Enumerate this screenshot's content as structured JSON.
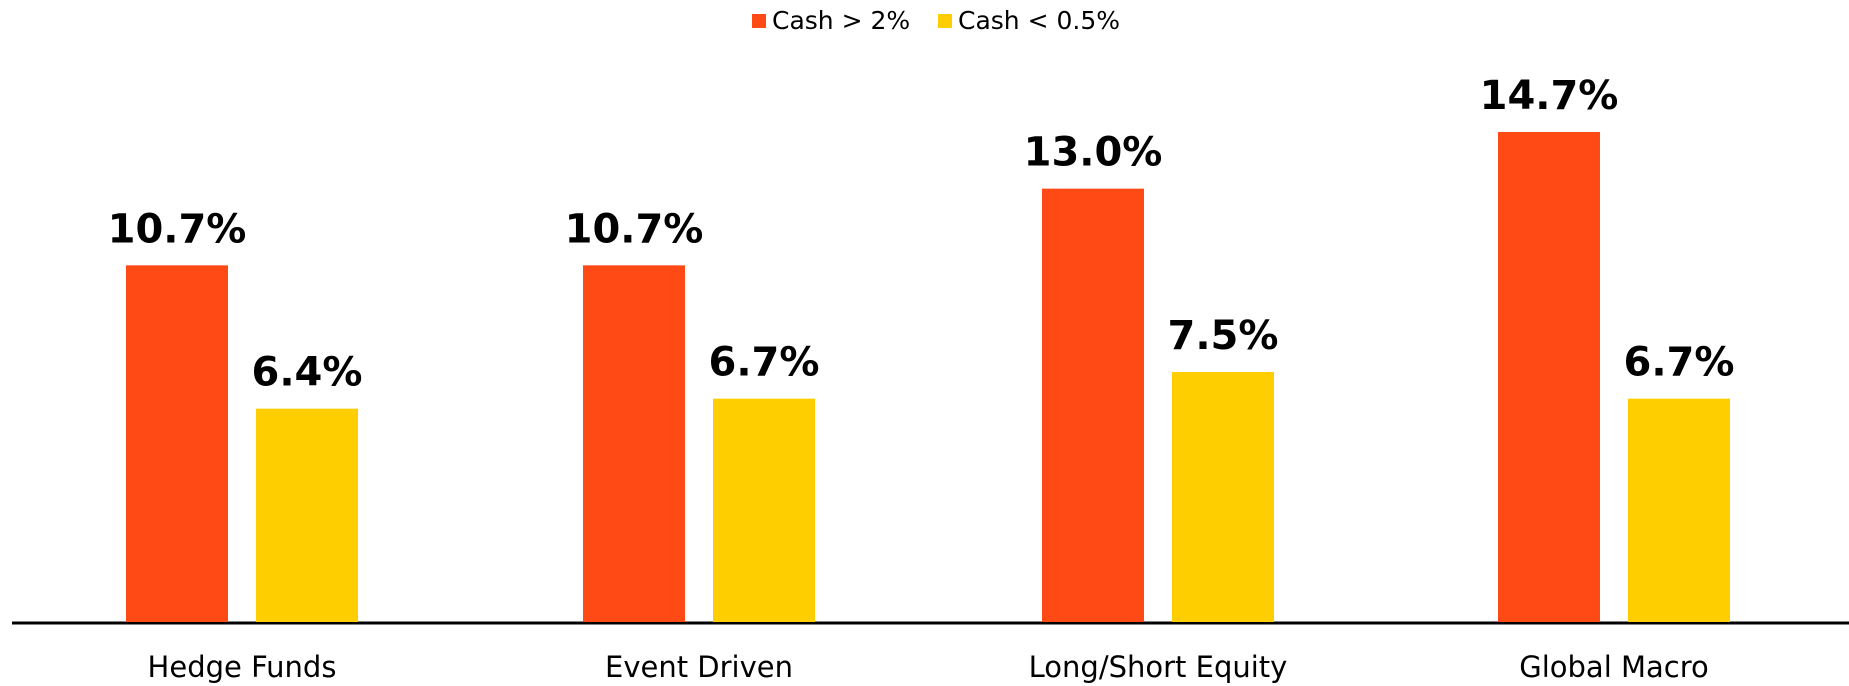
{
  "chart_data": {
    "type": "bar",
    "categories": [
      "Hedge Funds",
      "Event Driven",
      "Long/Short Equity",
      "Global Macro"
    ],
    "series": [
      {
        "name": "Cash > 2%",
        "color": "#ff4a16",
        "values": [
          10.7,
          10.7,
          13.0,
          14.7
        ],
        "value_labels": [
          "10.7%",
          "10.7%",
          "13.0%",
          "14.7%"
        ]
      },
      {
        "name": "Cash < 0.5%",
        "color": "#ffce00",
        "values": [
          6.4,
          6.7,
          7.5,
          6.7
        ],
        "value_labels": [
          "6.4%",
          "6.7%",
          "7.5%",
          "6.7%"
        ]
      }
    ]
  }
}
